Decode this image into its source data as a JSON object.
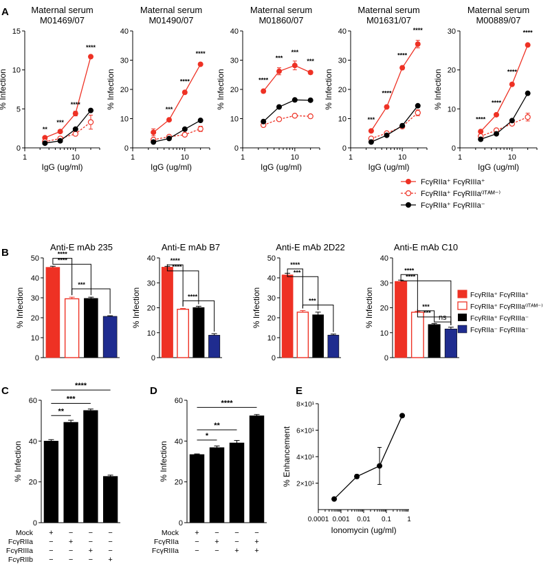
{
  "colors": {
    "red": "#EE3124",
    "black": "#000000",
    "blue": "#1F2C8F",
    "white": "#FFFFFF"
  },
  "legend_top": [
    {
      "label": "FcγRIIa⁺ FcγRIIIa⁺",
      "marker": "filled-red"
    },
    {
      "label": "FcγRIIa⁺ FcγRIIIa⁽ᴵᵀᴬᴹ⁻⁾",
      "marker": "open-red"
    },
    {
      "label": "FcγRIIa⁺ FcγRIIIa⁻",
      "marker": "filled-black"
    }
  ],
  "legend_b": [
    {
      "label": "FcγRIIa⁺ FcγRIIIa⁺",
      "fill": "red"
    },
    {
      "label": "FcγRIIa⁺ FcγRIIIa⁽ᴵᵀᴬᴹ⁻⁾",
      "fill": "open-red"
    },
    {
      "label": "FcγRIIa⁺ FcγRIIIa⁻",
      "fill": "black"
    },
    {
      "label": "FcγRIIa⁻ FcγRIIIa⁻",
      "fill": "blue"
    }
  ],
  "chart_data": [
    {
      "panel": "A",
      "type": "line",
      "title": [
        "Maternal serum",
        "M01469/07"
      ],
      "xlabel": "IgG (ug/ml)",
      "ylabel": "% Infection",
      "xscale": "log",
      "xlim": [
        1,
        30
      ],
      "ylim": [
        0,
        15
      ],
      "xticks": [
        1,
        10
      ],
      "xtick_labels": [
        "1",
        "10"
      ],
      "yticks": [
        0,
        5,
        10,
        15
      ],
      "ytick_labels": [
        "0",
        "5",
        "10",
        "15"
      ],
      "x": [
        2.5,
        5,
        10,
        20
      ],
      "series": [
        {
          "name": "FcγRIIa⁺ FcγRIIIa⁺",
          "style": "filled-red",
          "values": [
            1.3,
            2.1,
            4.4,
            11.7
          ],
          "errors": [
            0.2,
            0.2,
            0.3,
            0.2
          ]
        },
        {
          "name": "FcγRIIa⁺ FcγRIIIa(ITAM-)",
          "style": "open-red",
          "values": [
            0.8,
            1.2,
            1.8,
            3.3
          ],
          "errors": [
            0.1,
            0.2,
            0.2,
            0.9
          ]
        },
        {
          "name": "FcγRIIa⁺ FcγRIIIa⁻",
          "style": "filled-black",
          "values": [
            0.6,
            0.9,
            2.4,
            4.8
          ],
          "errors": [
            0,
            0,
            0,
            0
          ]
        }
      ],
      "annotations": [
        {
          "x": 2.5,
          "y": 2.1,
          "text": "**"
        },
        {
          "x": 5,
          "y": 3.0,
          "text": "***"
        },
        {
          "x": 10,
          "y": 5.3,
          "text": "****"
        },
        {
          "x": 20,
          "y": 12.6,
          "text": "****"
        }
      ]
    },
    {
      "panel": "A",
      "type": "line",
      "title": [
        "Maternal serum",
        "M01490/07"
      ],
      "xlabel": "IgG (ug/ml)",
      "ylabel": "% Infection",
      "xscale": "log",
      "xlim": [
        1,
        30
      ],
      "ylim": [
        0,
        40
      ],
      "xticks": [
        1,
        10
      ],
      "xtick_labels": [
        "1",
        "10"
      ],
      "yticks": [
        0,
        10,
        20,
        30,
        40
      ],
      "ytick_labels": [
        "0",
        "10",
        "20",
        "30",
        "40"
      ],
      "x": [
        2.5,
        5,
        10,
        20
      ],
      "series": [
        {
          "name": "FcγRIIa⁺ FcγRIIIa⁺",
          "style": "filled-red",
          "values": [
            5.3,
            9.6,
            19,
            28.6
          ],
          "errors": [
            1.2,
            0.3,
            0.3,
            0.3
          ]
        },
        {
          "name": "FcγRIIa⁺ FcγRIIIa(ITAM-)",
          "style": "open-red",
          "values": [
            2.8,
            3.8,
            4.5,
            6.5
          ],
          "errors": [
            0.2,
            0.2,
            0.3,
            0.9
          ]
        },
        {
          "name": "FcγRIIa⁺ FcγRIIIa⁻",
          "style": "filled-black",
          "values": [
            2.0,
            3.2,
            6.4,
            9.4
          ],
          "errors": [
            0,
            0,
            0,
            0
          ]
        }
      ],
      "annotations": [
        {
          "x": 5,
          "y": 12.5,
          "text": "***"
        },
        {
          "x": 10,
          "y": 22,
          "text": "****"
        },
        {
          "x": 20,
          "y": 31.5,
          "text": "****"
        }
      ]
    },
    {
      "panel": "A",
      "type": "line",
      "title": [
        "Maternal serum",
        "M01860/07"
      ],
      "xlabel": "IgG (ug/ml)",
      "ylabel": "% Infection",
      "xscale": "log",
      "xlim": [
        1,
        30
      ],
      "ylim": [
        0,
        40
      ],
      "xticks": [
        1,
        10
      ],
      "xtick_labels": [
        "1",
        "10"
      ],
      "yticks": [
        0,
        10,
        20,
        30,
        40
      ],
      "ytick_labels": [
        "0",
        "10",
        "20",
        "30",
        "40"
      ],
      "x": [
        2.5,
        5,
        10,
        20
      ],
      "series": [
        {
          "name": "FcγRIIa⁺ FcγRIIIa⁺",
          "style": "filled-red",
          "values": [
            19.4,
            26.2,
            28.2,
            25.8
          ],
          "errors": [
            0.6,
            1.2,
            1.5,
            0.6
          ]
        },
        {
          "name": "FcγRIIa⁺ FcγRIIIa(ITAM-)",
          "style": "open-red",
          "values": [
            7.8,
            9.8,
            11,
            10.8
          ],
          "errors": [
            0.2,
            0.2,
            0.3,
            0.2
          ]
        },
        {
          "name": "FcγRIIa⁺ FcγRIIIa⁻",
          "style": "filled-black",
          "values": [
            9.0,
            14,
            16.4,
            16.3
          ],
          "errors": [
            0,
            0,
            0,
            0
          ]
        }
      ],
      "annotations": [
        {
          "x": 2.5,
          "y": 22.5,
          "text": "****"
        },
        {
          "x": 5,
          "y": 30,
          "text": "***"
        },
        {
          "x": 10,
          "y": 32,
          "text": "***"
        },
        {
          "x": 20,
          "y": 29,
          "text": "***"
        }
      ]
    },
    {
      "panel": "A",
      "type": "line",
      "title": [
        "Maternal serum",
        "M01631/07"
      ],
      "xlabel": "IgG (ug/ml)",
      "ylabel": "% Infection",
      "xscale": "log",
      "xlim": [
        1,
        30
      ],
      "ylim": [
        0,
        40
      ],
      "xticks": [
        1,
        10
      ],
      "xtick_labels": [
        "1",
        "10"
      ],
      "yticks": [
        0,
        10,
        20,
        30,
        40
      ],
      "ytick_labels": [
        "0",
        "10",
        "20",
        "30",
        "40"
      ],
      "x": [
        2.5,
        5,
        10,
        20
      ],
      "series": [
        {
          "name": "FcγRIIa⁺ FcγRIIIa⁺",
          "style": "filled-red",
          "values": [
            5.8,
            14,
            27.4,
            35.5
          ],
          "errors": [
            0.5,
            0.4,
            0.6,
            1.3
          ]
        },
        {
          "name": "FcγRIIa⁺ FcγRIIIa(ITAM-)",
          "style": "open-red",
          "values": [
            3.2,
            5.0,
            7.3,
            12
          ],
          "errors": [
            0.2,
            0.3,
            0.4,
            1.0
          ]
        },
        {
          "name": "FcγRIIa⁺ FcγRIIIa⁻",
          "style": "filled-black",
          "values": [
            2.0,
            4.3,
            7.6,
            14.4
          ],
          "errors": [
            0,
            0,
            0,
            0
          ]
        }
      ],
      "annotations": [
        {
          "x": 2.5,
          "y": 9,
          "text": "***"
        },
        {
          "x": 5,
          "y": 18,
          "text": "****"
        },
        {
          "x": 10,
          "y": 31,
          "text": "****"
        },
        {
          "x": 20,
          "y": 39.5,
          "text": "****"
        }
      ]
    },
    {
      "panel": "A",
      "type": "line",
      "title": [
        "Maternal serum",
        "M00889/07"
      ],
      "xlabel": "IgG (ug/ml)",
      "ylabel": "% Infection",
      "xscale": "log",
      "xlim": [
        1,
        30
      ],
      "ylim": [
        0,
        30
      ],
      "xticks": [
        1,
        10
      ],
      "xtick_labels": [
        "1",
        "10"
      ],
      "yticks": [
        0,
        10,
        20,
        30
      ],
      "ytick_labels": [
        "0",
        "10",
        "20",
        "30"
      ],
      "x": [
        2.5,
        5,
        10,
        20
      ],
      "series": [
        {
          "name": "FcγRIIa⁺ FcγRIIIa⁺",
          "style": "filled-red",
          "values": [
            4.2,
            8.5,
            16.3,
            26.4
          ],
          "errors": [
            0.2,
            0.2,
            0.3,
            0.3
          ]
        },
        {
          "name": "FcγRIIa⁺ FcγRIIIa(ITAM-)",
          "style": "open-red",
          "values": [
            3.0,
            4.5,
            6.2,
            7.9
          ],
          "errors": [
            0.2,
            0.2,
            0.3,
            1.0
          ]
        },
        {
          "name": "FcγRIIa⁺ FcγRIIIa⁻",
          "style": "filled-black",
          "values": [
            2.2,
            3.6,
            7.0,
            14
          ],
          "errors": [
            0,
            0,
            0,
            0
          ]
        }
      ],
      "annotations": [
        {
          "x": 2.5,
          "y": 6.8,
          "text": "****"
        },
        {
          "x": 5,
          "y": 11,
          "text": "****"
        },
        {
          "x": 10,
          "y": 19,
          "text": "****"
        },
        {
          "x": 20,
          "y": 29,
          "text": "****"
        }
      ]
    },
    {
      "panel": "B",
      "type": "bar",
      "title": [
        "Anti-E mAb 235"
      ],
      "xlabel": "",
      "ylabel": "% Infection",
      "ylim": [
        0,
        50
      ],
      "yticks": [
        0,
        10,
        20,
        30,
        40,
        50
      ],
      "ytick_labels": [
        "0",
        "10",
        "20",
        "30",
        "40",
        "50"
      ],
      "categories": [
        "FcγRIIa⁺ FcγRIIIa⁺",
        "FcγRIIa⁺ FcγRIIIa(ITAM-)",
        "FcγRIIa⁺ FcγRIIIa⁻",
        "FcγRIIa⁻ FcγRIIIa⁻"
      ],
      "fills": [
        "red",
        "open-red",
        "black",
        "blue"
      ],
      "values": [
        45.3,
        29.5,
        29.7,
        20.7
      ],
      "errors": [
        0.5,
        0.8,
        0.6,
        0.3
      ],
      "brackets": [
        {
          "from": 0,
          "to": 1,
          "y": 49.8,
          "text": "****"
        },
        {
          "from": 0,
          "to": 2,
          "y": 46.8,
          "text": "****"
        },
        {
          "from": 1,
          "to": 3,
          "y": 34.5,
          "text": "***"
        }
      ]
    },
    {
      "panel": "B",
      "type": "bar",
      "title": [
        "Anti-E mAb B7"
      ],
      "xlabel": "",
      "ylabel": "% Infection",
      "ylim": [
        0,
        40
      ],
      "yticks": [
        0,
        10,
        20,
        30,
        40
      ],
      "ytick_labels": [
        "0",
        "10",
        "20",
        "30",
        "40"
      ],
      "categories": [
        "FcγRIIa⁺ FcγRIIIa⁺",
        "FcγRIIa⁺ FcγRIIIa(ITAM-)",
        "FcγRIIa⁺ FcγRIIIa⁻",
        "FcγRIIa⁻ FcγRIIIa⁻"
      ],
      "fills": [
        "red",
        "open-red",
        "black",
        "blue"
      ],
      "values": [
        36.3,
        19.4,
        20.1,
        9.0
      ],
      "errors": [
        0.3,
        0.3,
        0.5,
        0.6
      ],
      "brackets": [
        {
          "from": 0,
          "to": 1,
          "y": 37.2,
          "text": "****"
        },
        {
          "from": 0,
          "to": 2,
          "y": 34.8,
          "text": "****"
        },
        {
          "from": 1,
          "to": 3,
          "y": 22.8,
          "text": "****"
        }
      ]
    },
    {
      "panel": "B",
      "type": "bar",
      "title": [
        "Anti-E mAb 2D22"
      ],
      "xlabel": "",
      "ylabel": "% Infection",
      "ylim": [
        0,
        50
      ],
      "yticks": [
        0,
        10,
        20,
        30,
        40,
        50
      ],
      "ytick_labels": [
        "0",
        "10",
        "20",
        "30",
        "40",
        "50"
      ],
      "categories": [
        "FcγRIIa⁺ FcγRIIIa⁺",
        "FcγRIIa⁺ FcγRIIIa(ITAM-)",
        "FcγRIIa⁺ FcγRIIIa⁻",
        "FcγRIIa⁻ FcγRIIIa⁻"
      ],
      "fills": [
        "red",
        "open-red",
        "black",
        "blue"
      ],
      "values": [
        41.5,
        22.8,
        21.5,
        11.3
      ],
      "errors": [
        0.8,
        0.8,
        1.3,
        0.5
      ],
      "brackets": [
        {
          "from": 0,
          "to": 1,
          "y": 44.5,
          "text": "****"
        },
        {
          "from": 0,
          "to": 2,
          "y": 40.6,
          "text": "***"
        },
        {
          "from": 1,
          "to": 3,
          "y": 26.4,
          "text": "***"
        }
      ]
    },
    {
      "panel": "B",
      "type": "bar",
      "title": [
        "Anti-E mAb C10"
      ],
      "xlabel": "",
      "ylabel": "% Infection",
      "ylim": [
        0,
        40
      ],
      "yticks": [
        0,
        10,
        20,
        30,
        40
      ],
      "ytick_labels": [
        "0",
        "10",
        "20",
        "30",
        "40"
      ],
      "categories": [
        "FcγRIIa⁺ FcγRIIIa⁺",
        "FcγRIIa⁺ FcγRIIIa(ITAM-)",
        "FcγRIIa⁺ FcγRIIIa⁻",
        "FcγRIIa⁻ FcγRIIIa⁻"
      ],
      "fills": [
        "red",
        "open-red",
        "black",
        "blue"
      ],
      "values": [
        30.6,
        18.2,
        13.3,
        11.5
      ],
      "errors": [
        0.5,
        0.4,
        0.4,
        0.7
      ],
      "brackets": [
        {
          "from": 0,
          "to": 1,
          "y": 33.3,
          "text": "****"
        },
        {
          "from": 0,
          "to": 3,
          "y": 30.8,
          "text": "****"
        },
        {
          "from": 1,
          "to": 2,
          "y": 18.8,
          "text": "***"
        },
        {
          "from": 1,
          "to": 3,
          "y": 16.3,
          "text": "***"
        },
        {
          "from": 2,
          "to": 3,
          "y": 14.3,
          "text": "ns"
        }
      ]
    },
    {
      "panel": "C",
      "type": "bar",
      "title": [],
      "xlabel": "",
      "ylabel": "% Infection",
      "ylim": [
        0,
        60
      ],
      "yticks": [
        0,
        20,
        40,
        60
      ],
      "ytick_labels": [
        "0",
        "20",
        "40",
        "60"
      ],
      "categories": [
        "1",
        "2",
        "3",
        "4"
      ],
      "values": [
        40.0,
        49.2,
        55.0,
        22.7
      ],
      "errors": [
        0.7,
        1.0,
        0.7,
        0.6
      ],
      "brackets": [
        {
          "from": 0,
          "to": 1,
          "y": 52.5,
          "text": "**"
        },
        {
          "from": 0,
          "to": 2,
          "y": 58.5,
          "text": "***"
        },
        {
          "from": 0,
          "to": 3,
          "y": 65,
          "text": "****"
        }
      ],
      "matrix_rows": [
        "Mock",
        "FcγRIIa",
        "FcγRIIIa",
        "FcγRIIb"
      ],
      "matrix": [
        [
          "+",
          "−",
          "−",
          "−"
        ],
        [
          "−",
          "+",
          "−",
          "−"
        ],
        [
          "−",
          "−",
          "+",
          "−"
        ],
        [
          "−",
          "−",
          "−",
          "+"
        ]
      ]
    },
    {
      "panel": "D",
      "type": "bar",
      "title": [],
      "xlabel": "",
      "ylabel": "% Infection",
      "ylim": [
        0,
        60
      ],
      "yticks": [
        0,
        20,
        40,
        60
      ],
      "ytick_labels": [
        "0",
        "20",
        "40",
        "60"
      ],
      "categories": [
        "1",
        "2",
        "3",
        "4"
      ],
      "values": [
        33.4,
        36.8,
        39.1,
        52.4
      ],
      "errors": [
        0.3,
        0.8,
        1.2,
        0.6
      ],
      "brackets": [
        {
          "from": 0,
          "to": 1,
          "y": 40.5,
          "text": "*"
        },
        {
          "from": 0,
          "to": 2,
          "y": 45.5,
          "text": "**"
        },
        {
          "from": 0,
          "to": 3,
          "y": 56.5,
          "text": "****"
        }
      ],
      "matrix_rows": [
        "Mock",
        "FcγRIIa",
        "FcγRIIIa"
      ],
      "matrix": [
        [
          "+",
          "−",
          "−",
          "−"
        ],
        [
          "−",
          "+",
          "−",
          "+"
        ],
        [
          "−",
          "−",
          "+",
          "+"
        ]
      ]
    },
    {
      "panel": "E",
      "type": "line",
      "title": [],
      "xlabel": "Ionomycin (ug/ml)",
      "ylabel": "% Enhancement",
      "xscale": "log",
      "xlim": [
        0.0001,
        1
      ],
      "xticks": [
        0.0001,
        0.001,
        0.01,
        0.1,
        1
      ],
      "xtick_labels": [
        "0.0001",
        "0.001",
        "0.01",
        "0.1",
        "1"
      ],
      "ylim": [
        0,
        80
      ],
      "yticks": [
        20,
        40,
        60,
        80
      ],
      "ytick_labels": [
        "2×10¹",
        "4×10¹",
        "6×10¹",
        "8×10¹"
      ],
      "x": [
        0.0005,
        0.005,
        0.05,
        0.5
      ],
      "series": [
        {
          "name": "Ionomycin",
          "style": "filled-black",
          "values": [
            8,
            25,
            33,
            71
          ],
          "errors": [
            0,
            1.5,
            14,
            0
          ]
        }
      ]
    }
  ]
}
